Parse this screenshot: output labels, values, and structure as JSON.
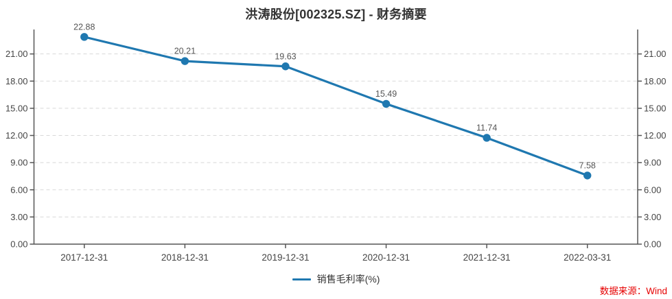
{
  "header": {
    "title": "洪涛股份[002325.SZ] - 财务摘要"
  },
  "chart_data": {
    "type": "line",
    "title": "洪涛股份[002325.SZ] - 财务摘要",
    "categories": [
      "2017-12-31",
      "2018-12-31",
      "2019-12-31",
      "2020-12-31",
      "2021-12-31",
      "2022-03-31"
    ],
    "series": [
      {
        "name": "销售毛利率(%)",
        "values": [
          22.88,
          20.21,
          19.63,
          15.49,
          11.74,
          7.58
        ]
      }
    ],
    "value_labels": [
      "22.88",
      "20.21",
      "19.63",
      "15.49",
      "11.74",
      "7.58"
    ],
    "ylabel": "",
    "xlabel": "",
    "ylim": [
      0,
      23.7
    ],
    "ytick_interval": 3,
    "ytick_labels": [
      "0.00",
      "3.00",
      "6.00",
      "9.00",
      "12.00",
      "15.00",
      "18.00",
      "21.00"
    ],
    "grid": "horizontal-dashed",
    "dual_y_axis": true,
    "legend_position": "bottom-center"
  },
  "legend": {
    "series_label": "销售毛利率(%)"
  },
  "footer": {
    "source": "数据来源：Wind"
  },
  "colors": {
    "line": "#1f78b0",
    "marker": "#1f78b0",
    "grid": "#d8d8d8",
    "axis": "#555555",
    "tick_label": "#444444",
    "value_label": "#555555",
    "title": "#333333",
    "legend_text": "#333333",
    "source": "#e60000",
    "background": "#ffffff"
  }
}
